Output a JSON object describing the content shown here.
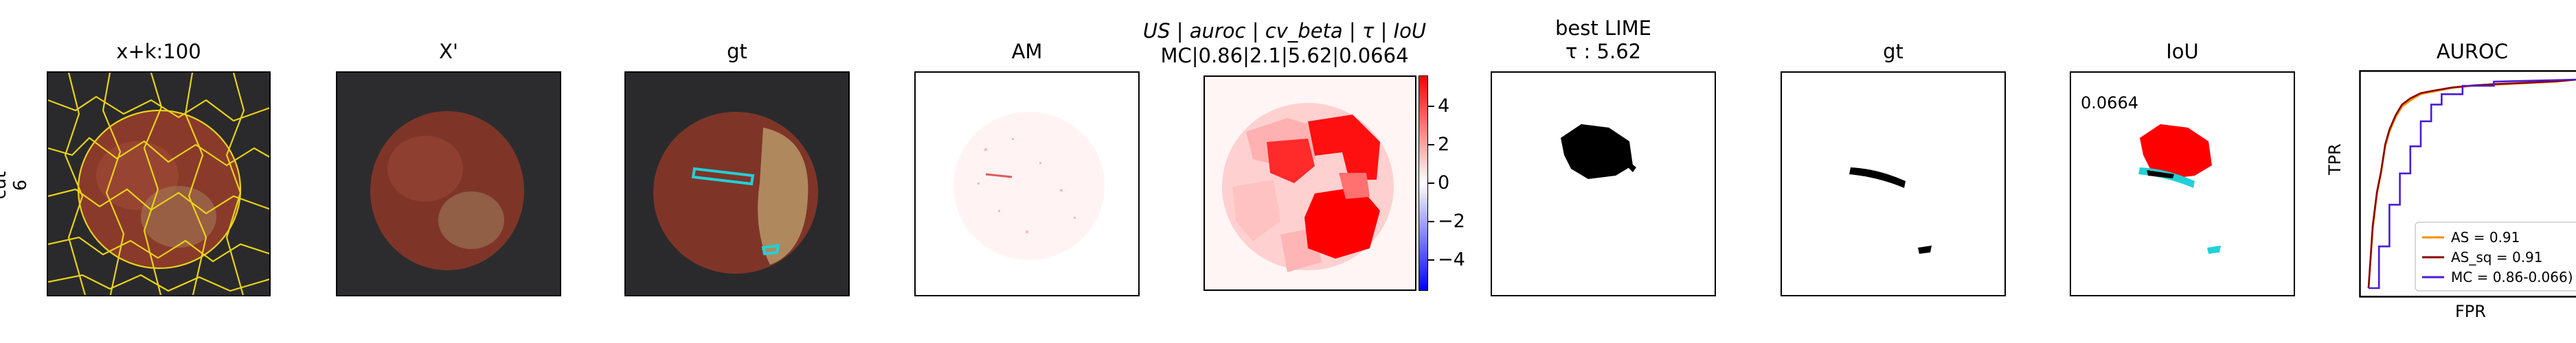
{
  "row_label": {
    "line1": "cut",
    "line2": "6"
  },
  "panels": {
    "input": {
      "title": "x+k:100"
    },
    "xprime": {
      "title": "X'"
    },
    "gt1": {
      "title": "gt"
    },
    "am": {
      "title": "AM"
    },
    "us": {
      "title_line1": "US | auroc | cv_beta | τ | IoU",
      "title_line2": "MC|0.86|2.1|5.62|0.0664"
    },
    "lime": {
      "title_line1": "best LIME",
      "title_line2": "τ : 5.62"
    },
    "gt2": {
      "title": "gt"
    },
    "iou": {
      "title": "IoU",
      "value": "0.0664"
    },
    "auroc": {
      "title": "AUROC"
    }
  },
  "colorbar": {
    "ticks": [
      "4",
      "2",
      "0",
      "−2",
      "−4"
    ],
    "tick_values": [
      4,
      2,
      0,
      -2,
      -4
    ],
    "range": [
      -5.6,
      5.6
    ]
  },
  "colors": {
    "hazelnut": "#8a3a2a",
    "segment_lines": "#e8d21a",
    "gt_outline": "#22d0d8",
    "heat_red": "#ff0000",
    "as_line": "#ff8c00",
    "as_sq_line": "#8b0000",
    "mc_line": "#4b1bd6"
  },
  "chart_data": {
    "type": "line",
    "title": "AUROC",
    "xlabel": "FPR",
    "ylabel": "TPR",
    "xlim": [
      0,
      1
    ],
    "ylim": [
      0,
      1
    ],
    "legend_position": "lower-right",
    "series": [
      {
        "name": "AS = 0.91",
        "color": "#ff8c00",
        "x": [
          0,
          0.02,
          0.04,
          0.06,
          0.08,
          0.1,
          0.13,
          0.16,
          0.2,
          0.25,
          0.3,
          0.4,
          0.5,
          0.6,
          0.7,
          0.8,
          0.9,
          1.0
        ],
        "y": [
          0,
          0.28,
          0.45,
          0.55,
          0.68,
          0.75,
          0.82,
          0.87,
          0.9,
          0.93,
          0.94,
          0.96,
          0.97,
          0.975,
          0.98,
          0.985,
          0.99,
          1.0
        ]
      },
      {
        "name": "AS_sq = 0.91",
        "color": "#8b0000",
        "x": [
          0,
          0.02,
          0.04,
          0.06,
          0.08,
          0.1,
          0.13,
          0.16,
          0.2,
          0.25,
          0.3,
          0.4,
          0.5,
          0.6,
          0.7,
          0.8,
          0.9,
          1.0
        ],
        "y": [
          0,
          0.3,
          0.46,
          0.56,
          0.69,
          0.76,
          0.83,
          0.88,
          0.91,
          0.935,
          0.945,
          0.962,
          0.972,
          0.978,
          0.982,
          0.987,
          0.992,
          1.0
        ]
      },
      {
        "name": "MC = 0.86-0.066)",
        "color": "#4b1bd6",
        "x": [
          0,
          0.05,
          0.05,
          0.1,
          0.1,
          0.15,
          0.15,
          0.2,
          0.2,
          0.25,
          0.25,
          0.3,
          0.3,
          0.35,
          0.35,
          0.45,
          0.45,
          0.6,
          0.6,
          1.0
        ],
        "y": [
          0,
          0.0,
          0.2,
          0.2,
          0.4,
          0.4,
          0.55,
          0.55,
          0.68,
          0.68,
          0.8,
          0.8,
          0.88,
          0.88,
          0.93,
          0.93,
          0.97,
          0.97,
          0.99,
          1.0
        ]
      }
    ]
  }
}
